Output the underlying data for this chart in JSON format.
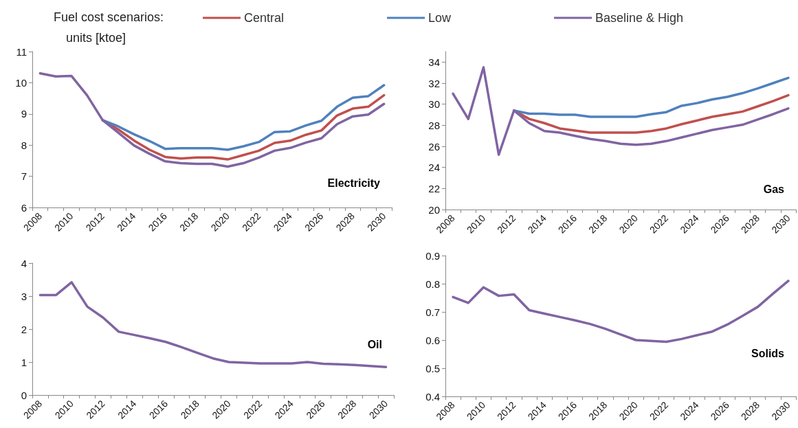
{
  "chart_data": [
    {
      "type": "line",
      "title": "Electricity",
      "legend_title": "Fuel cost scenarios:",
      "annotations": [
        "units [ktoe]"
      ],
      "legend": "top",
      "grid": false,
      "categories": [
        "2008",
        null,
        "2010",
        null,
        "2012",
        null,
        "2014",
        null,
        "2016",
        null,
        "2018",
        null,
        "2020",
        null,
        "2022",
        null,
        "2024",
        null,
        "2026",
        null,
        "2028",
        null,
        "2030"
      ],
      "ylim": [
        6,
        11
      ],
      "yticks": [
        6,
        7,
        8,
        9,
        10,
        11
      ],
      "series": [
        {
          "name": "Central",
          "color": "#c0504d",
          "values": [
            null,
            null,
            null,
            null,
            8.8,
            8.5,
            8.15,
            7.85,
            7.62,
            7.57,
            7.6,
            7.6,
            7.54,
            7.68,
            7.82,
            8.07,
            8.14,
            8.33,
            8.47,
            8.95,
            9.17,
            9.23,
            9.6
          ]
        },
        {
          "name": "Low",
          "color": "#4f81bd",
          "values": [
            null,
            null,
            null,
            null,
            8.8,
            8.6,
            8.35,
            8.13,
            7.88,
            7.9,
            7.9,
            7.9,
            7.85,
            7.96,
            8.1,
            8.42,
            8.44,
            8.63,
            8.78,
            9.23,
            9.52,
            9.57,
            9.92
          ]
        },
        {
          "name": "Baseline & High",
          "color": "#8064a2",
          "values": [
            10.3,
            10.2,
            10.22,
            9.6,
            8.8,
            8.4,
            7.99,
            7.72,
            7.48,
            7.42,
            7.4,
            7.4,
            7.31,
            7.42,
            7.6,
            7.82,
            7.91,
            8.08,
            8.22,
            8.67,
            8.92,
            8.98,
            9.32
          ]
        }
      ]
    },
    {
      "type": "line",
      "title": "Gas",
      "grid": false,
      "categories": [
        "2008",
        null,
        "2010",
        null,
        "2012",
        null,
        "2014",
        null,
        "2016",
        null,
        "2018",
        null,
        "2020",
        null,
        "2022",
        null,
        "2024",
        null,
        "2026",
        null,
        "2028",
        null,
        "2030"
      ],
      "ylim": [
        20,
        35
      ],
      "yticks": [
        20,
        22,
        24,
        26,
        28,
        30,
        32,
        34
      ],
      "series": [
        {
          "color": "#c0504d",
          "values": [
            null,
            null,
            null,
            null,
            29.4,
            28.6,
            28.2,
            27.7,
            27.5,
            27.3,
            27.3,
            27.3,
            27.3,
            27.45,
            27.7,
            28.1,
            28.45,
            28.8,
            29.05,
            29.3,
            29.8,
            30.3,
            30.85
          ]
        },
        {
          "color": "#4f81bd",
          "values": [
            null,
            null,
            null,
            null,
            29.4,
            29.1,
            29.1,
            29.0,
            29.0,
            28.8,
            28.8,
            28.8,
            28.8,
            29.05,
            29.25,
            29.85,
            30.1,
            30.45,
            30.7,
            31.05,
            31.5,
            32.0,
            32.5
          ]
        },
        {
          "color": "#8064a2",
          "values": [
            31,
            28.6,
            33.5,
            25.2,
            29.4,
            28.2,
            27.45,
            27.3,
            27.0,
            26.7,
            26.5,
            26.25,
            26.15,
            26.25,
            26.5,
            26.85,
            27.2,
            27.55,
            27.8,
            28.05,
            28.55,
            29.05,
            29.6
          ]
        }
      ]
    },
    {
      "type": "line",
      "title": "Oil",
      "grid": false,
      "categories": [
        "2008",
        null,
        "2010",
        null,
        "2012",
        null,
        "2014",
        null,
        "2016",
        null,
        "2018",
        null,
        "2020",
        null,
        "2022",
        null,
        "2024",
        null,
        "2026",
        null,
        "2028",
        null,
        "2030"
      ],
      "ylim": [
        0,
        4
      ],
      "yticks": [
        0,
        1,
        2,
        3,
        4
      ],
      "series": [
        {
          "color": "#8064a2",
          "values": [
            3.03,
            3.03,
            3.42,
            2.68,
            2.35,
            1.92,
            1.82,
            1.72,
            1.61,
            1.45,
            1.28,
            1.11,
            1.0,
            0.98,
            0.96,
            0.96,
            0.96,
            1.0,
            0.95,
            0.93,
            0.91,
            0.88,
            0.85
          ]
        }
      ]
    },
    {
      "type": "line",
      "title": "Solids",
      "grid": false,
      "categories": [
        "2008",
        null,
        "2010",
        null,
        "2012",
        null,
        "2014",
        null,
        "2016",
        null,
        "2018",
        null,
        "2020",
        null,
        "2022",
        null,
        "2024",
        null,
        "2026",
        null,
        "2028",
        null,
        "2030"
      ],
      "ylim": [
        0.4,
        0.9
      ],
      "yticks": [
        0.4,
        0.5,
        0.6,
        0.7,
        0.8,
        0.9
      ],
      "series": [
        {
          "color": "#8064a2",
          "values": [
            0.753,
            0.732,
            0.787,
            0.757,
            0.762,
            0.706,
            0.694,
            0.682,
            0.67,
            0.657,
            0.64,
            0.62,
            0.6,
            0.597,
            0.594,
            0.604,
            0.617,
            0.63,
            0.655,
            0.686,
            0.718,
            0.765,
            0.81
          ]
        }
      ]
    }
  ]
}
